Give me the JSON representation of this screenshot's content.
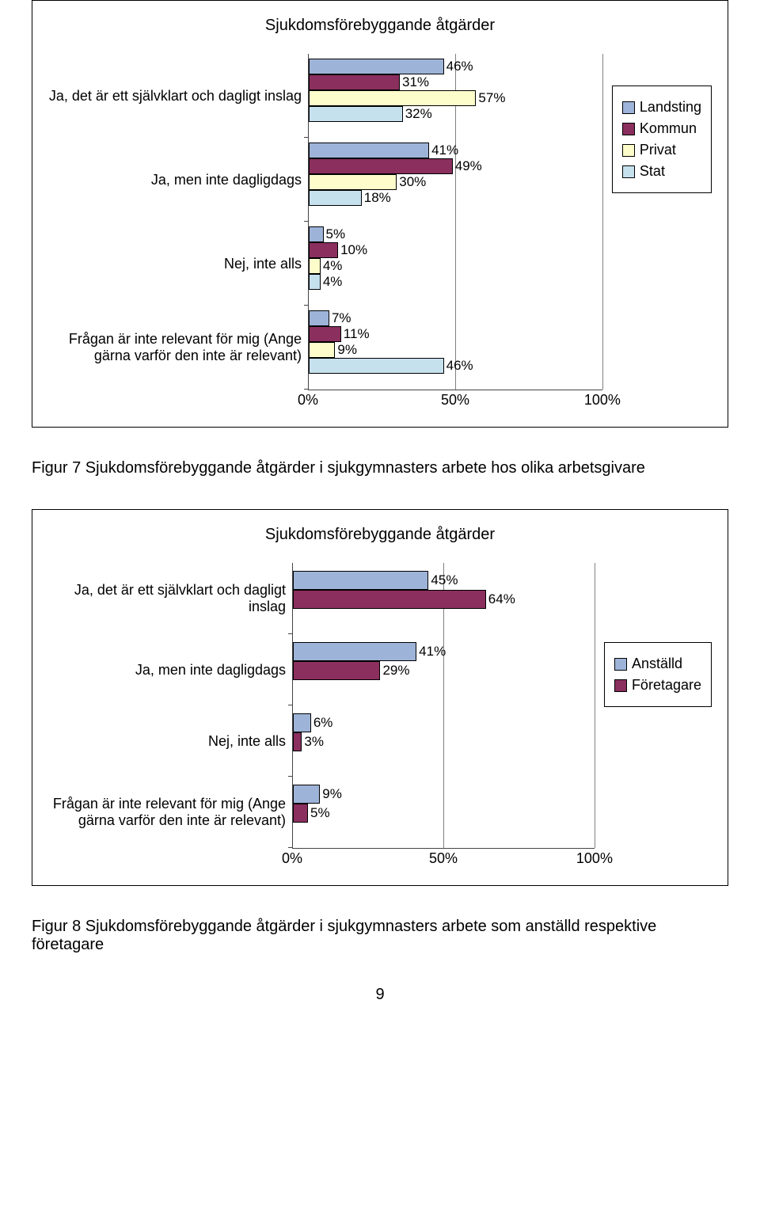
{
  "chart1": {
    "title": "Sjukdomsförebyggande åtgärder",
    "xlim": 100,
    "x_ticks": [
      0,
      50,
      100
    ],
    "categories": [
      {
        "label": "Ja, det är ett självklart och dagligt inslag",
        "values": [
          46,
          31,
          57,
          32
        ]
      },
      {
        "label": "Ja, men inte dagligdags",
        "values": [
          41,
          49,
          30,
          18
        ]
      },
      {
        "label": "Nej, inte alls",
        "values": [
          5,
          10,
          4,
          4
        ]
      },
      {
        "label": "Frågan är inte relevant för mig (Ange gärna varför den inte är relevant)",
        "values": [
          7,
          11,
          9,
          46
        ]
      }
    ],
    "series": [
      {
        "label": "Landsting",
        "color": "#9eb3d8"
      },
      {
        "label": "Kommun",
        "color": "#8a2f5e"
      },
      {
        "label": "Privat",
        "color": "#fdfccb"
      },
      {
        "label": "Stat",
        "color": "#c6e1ee"
      }
    ]
  },
  "caption1": "Figur 7 Sjukdomsförebyggande åtgärder i sjukgymnasters arbete hos olika arbetsgivare",
  "chart2": {
    "title": "Sjukdomsförebyggande åtgärder",
    "xlim": 100,
    "x_ticks": [
      0,
      50,
      100
    ],
    "categories": [
      {
        "label": "Ja, det är ett självklart och dagligt inslag",
        "values": [
          45,
          64
        ]
      },
      {
        "label": "Ja, men inte dagligdags",
        "values": [
          41,
          29
        ]
      },
      {
        "label": "Nej, inte alls",
        "values": [
          6,
          3
        ]
      },
      {
        "label": "Frågan är inte relevant för mig (Ange gärna varför den inte är relevant)",
        "values": [
          9,
          5
        ]
      }
    ],
    "series": [
      {
        "label": "Anställd",
        "color": "#9eb3d8"
      },
      {
        "label": "Företagare",
        "color": "#8a2f5e"
      }
    ]
  },
  "caption2": "Figur 8 Sjukdomsförebyggande åtgärder i sjukgymnasters arbete som anställd respektive företagare",
  "page_number": "9"
}
